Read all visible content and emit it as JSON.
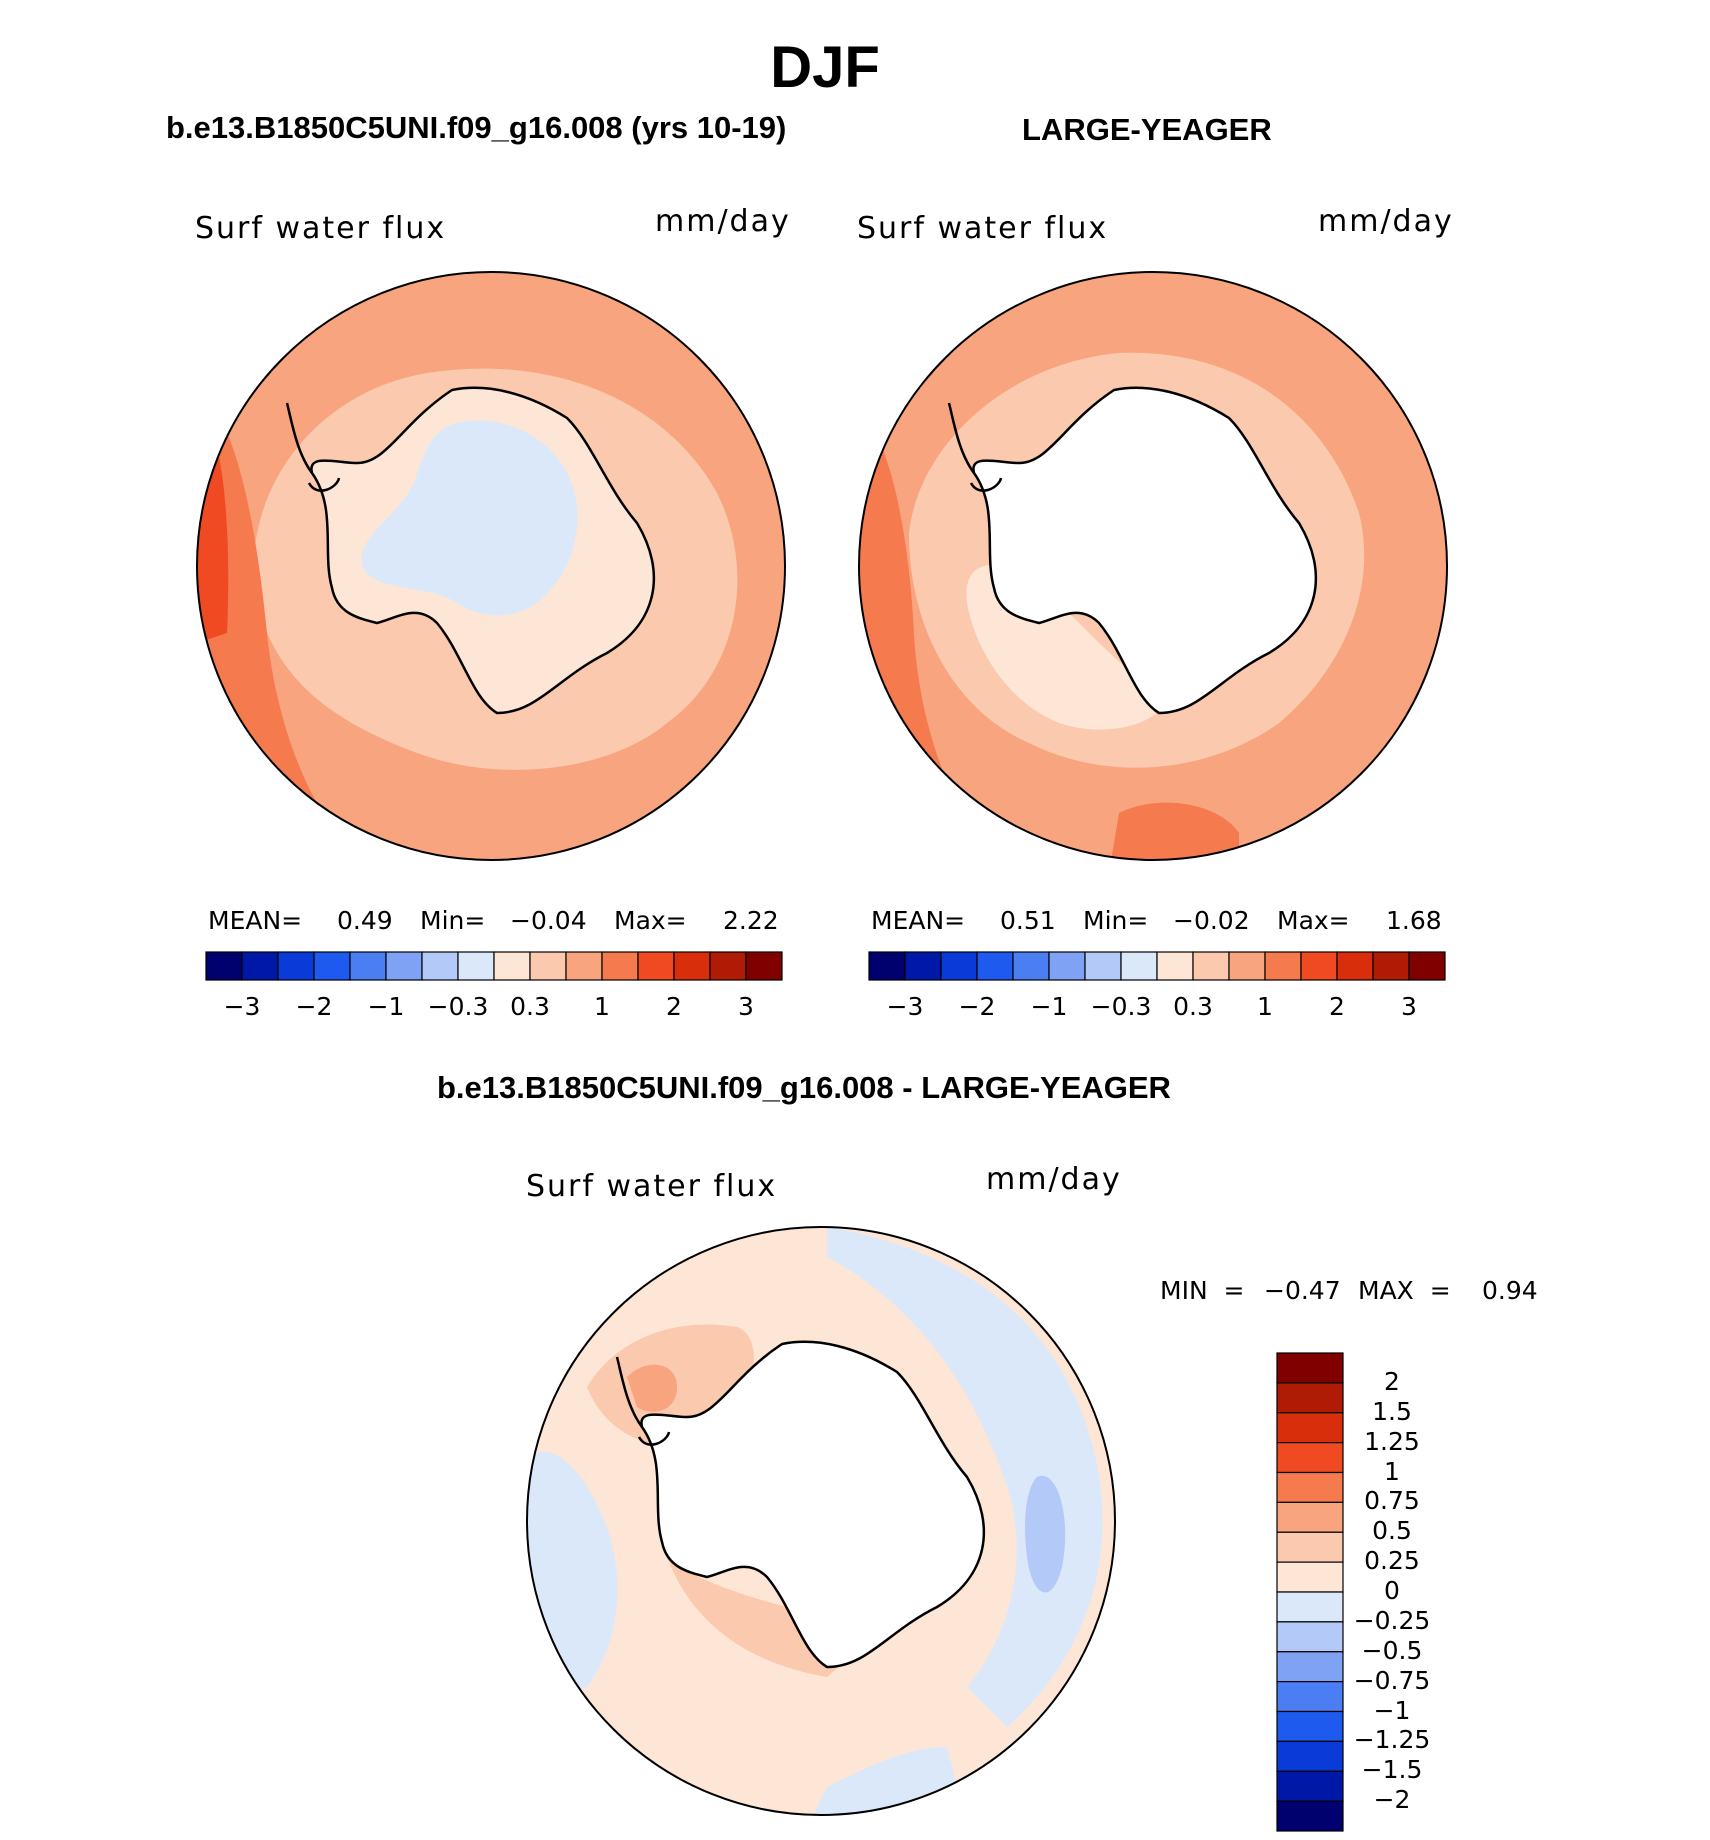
{
  "page_title": "DJF",
  "panels": [
    {
      "case_title": "b.e13.B1850C5UNI.f09_g16.008 (yrs 10-19)",
      "variable": "Surf  water  flux",
      "units": "mm/day",
      "stats": {
        "mean_label": "MEAN=",
        "mean": "0.49",
        "min_label": "Min=",
        "min": "−0.04",
        "max_label": "Max=",
        "max": "2.22"
      }
    },
    {
      "case_title": "LARGE-YEAGER",
      "variable": "Surf  water  flux",
      "units": "mm/day",
      "stats": {
        "mean_label": "MEAN=",
        "mean": "0.51",
        "min_label": "Min=",
        "min": "−0.02",
        "max_label": "Max=",
        "max": "1.68"
      }
    }
  ],
  "diff_panel": {
    "case_title": "b.e13.B1850C5UNI.f09_g16.008 - LARGE-YEAGER",
    "variable": "Surf  water  flux",
    "units": "mm/day",
    "min_label": "MIN  =",
    "min": "−0.47",
    "max_label": "MAX  =",
    "max": "0.94"
  },
  "colorbar_top": {
    "ticks": [
      "−3",
      "−2",
      "−1",
      "−0.3",
      "0.3",
      "1",
      "2",
      "3"
    ],
    "colors": [
      "#00006e",
      "#0018a8",
      "#0a3ad8",
      "#1f5af0",
      "#4a7ef2",
      "#7fa2f5",
      "#b3c9f7",
      "#dbe8fa",
      "#fde6d6",
      "#fbc9ad",
      "#f8a47f",
      "#f57a4e",
      "#ef4a22",
      "#d92e0b",
      "#b01b06",
      "#800000"
    ]
  },
  "colorbar_diff": {
    "ticks": [
      "2",
      "1.5",
      "1.25",
      "1",
      "0.75",
      "0.5",
      "0.25",
      "0",
      "−0.25",
      "−0.5",
      "−0.75",
      "−1",
      "−1.25",
      "−1.5",
      "−2"
    ],
    "colors": [
      "#800000",
      "#b01b06",
      "#d92e0b",
      "#ef4a22",
      "#f57a4e",
      "#f8a47f",
      "#fbc9ad",
      "#fde6d6",
      "#dbe8fa",
      "#b3c9f7",
      "#7fa2f5",
      "#4a7ef2",
      "#1f5af0",
      "#0a3ad8",
      "#0018a8",
      "#00006e"
    ]
  },
  "map_colors": {
    "ocean_high": "#f8a47f",
    "ocean_mid": "#fbc9ad",
    "ocean_low": "#fde6d6",
    "ocean_strong": "#f57a4e",
    "ocean_max": "#ef4a22",
    "land_neg": "#dbe8fa",
    "diff_base": "#fde6d6",
    "diff_neg": "#dbe8fa",
    "diff_neg2": "#b3c9f7",
    "diff_pos": "#fbc9ad",
    "diff_pos2": "#f8a47f",
    "land_blank": "#ffffff"
  }
}
